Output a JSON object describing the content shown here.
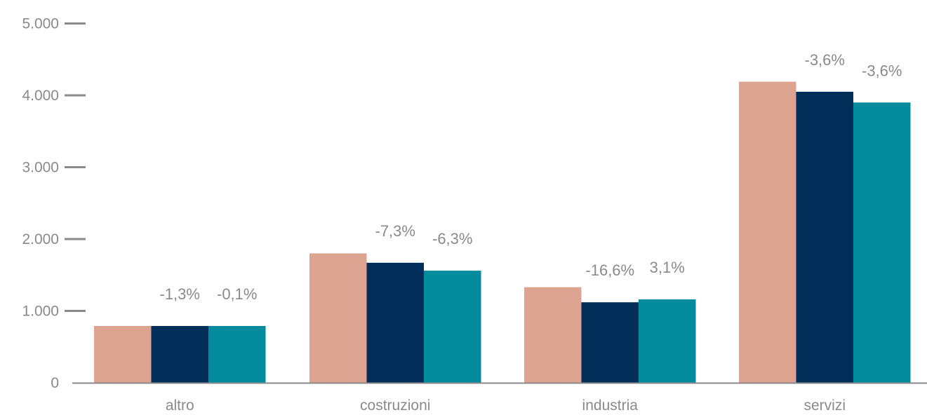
{
  "chart_data": {
    "type": "bar",
    "categories": [
      "altro",
      "costruzioni",
      "industria",
      "servizi"
    ],
    "series": [
      {
        "values": [
          790,
          1800,
          1330,
          4190
        ],
        "color": "#dba390",
        "labels": [
          "",
          "",
          "",
          ""
        ]
      },
      {
        "values": [
          790,
          1670,
          1120,
          4050
        ],
        "color": "#022f5a",
        "labels": [
          "-1,3%",
          "-7,3%",
          "-16,6%",
          "-3,6%"
        ]
      },
      {
        "values": [
          790,
          1560,
          1160,
          3900
        ],
        "color": "#028b9c",
        "labels": [
          "-0,1%",
          "-6,3%",
          "3,1%",
          "-3,6%"
        ]
      }
    ],
    "y_ticks": [
      {
        "value": 0,
        "label": "0"
      },
      {
        "value": 1000,
        "label": "1.000"
      },
      {
        "value": 2000,
        "label": "2.000"
      },
      {
        "value": 3000,
        "label": "3.000"
      },
      {
        "value": 4000,
        "label": "4.000"
      },
      {
        "value": 5000,
        "label": "5.000"
      }
    ],
    "ylim": [
      0,
      5000
    ],
    "grid": false,
    "legend": "none",
    "colors": {
      "axis": "#8a8a8a",
      "text": "#8a8a8a"
    }
  }
}
